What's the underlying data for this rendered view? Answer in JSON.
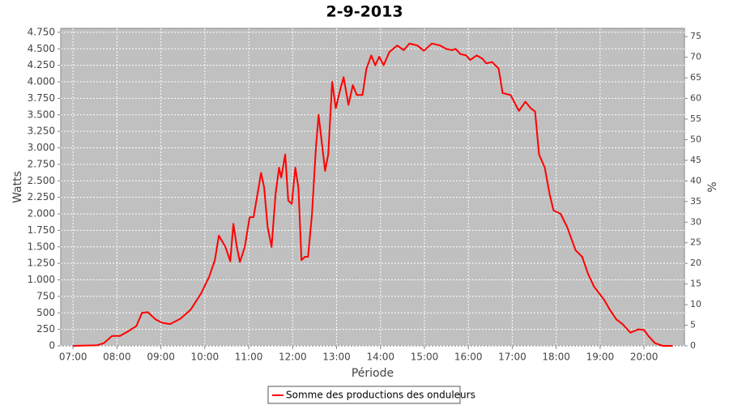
{
  "chart_data": {
    "type": "line",
    "title": "2-9-2013",
    "x_label": "Période",
    "y_label": "Watts",
    "y2_label": "%",
    "x": [
      7.0,
      7.55,
      7.7,
      7.89,
      8.07,
      8.25,
      8.44,
      8.57,
      8.7,
      8.88,
      9.03,
      9.21,
      9.44,
      9.68,
      9.92,
      10.1,
      10.23,
      10.32,
      10.47,
      10.58,
      10.65,
      10.73,
      10.8,
      10.91,
      11.02,
      11.11,
      11.2,
      11.28,
      11.35,
      11.43,
      11.52,
      11.61,
      11.69,
      11.74,
      11.83,
      11.9,
      11.98,
      12.06,
      12.13,
      12.2,
      12.28,
      12.35,
      12.44,
      12.53,
      12.59,
      12.66,
      12.74,
      12.81,
      12.9,
      12.98,
      13.09,
      13.16,
      13.27,
      13.37,
      13.46,
      13.59,
      13.68,
      13.79,
      13.88,
      13.97,
      14.07,
      14.2,
      14.38,
      14.53,
      14.66,
      14.84,
      14.99,
      15.17,
      15.36,
      15.49,
      15.63,
      15.71,
      15.82,
      15.95,
      16.04,
      16.19,
      16.32,
      16.41,
      16.54,
      16.69,
      16.78,
      16.96,
      17.15,
      17.3,
      17.42,
      17.52,
      17.61,
      17.74,
      17.85,
      17.94,
      18.1,
      18.25,
      18.44,
      18.59,
      18.72,
      18.86,
      19.09,
      19.22,
      19.37,
      19.51,
      19.69,
      19.87,
      20.0,
      20.1,
      20.25,
      20.43,
      20.65
    ],
    "series": [
      {
        "name": "Somme des productions des onduleurs",
        "color": "#ff0000",
        "values": [
          0,
          10,
          40,
          150,
          150,
          220,
          300,
          500,
          510,
          400,
          350,
          330,
          410,
          550,
          800,
          1050,
          1300,
          1670,
          1500,
          1280,
          1850,
          1500,
          1270,
          1500,
          1950,
          1950,
          2300,
          2620,
          2400,
          1800,
          1500,
          2300,
          2700,
          2550,
          2900,
          2200,
          2150,
          2700,
          2400,
          1300,
          1350,
          1350,
          2000,
          3000,
          3500,
          3100,
          2650,
          2900,
          4000,
          3600,
          3900,
          4070,
          3650,
          3950,
          3800,
          3800,
          4200,
          4400,
          4250,
          4380,
          4250,
          4450,
          4550,
          4480,
          4580,
          4550,
          4470,
          4580,
          4550,
          4500,
          4480,
          4500,
          4420,
          4400,
          4330,
          4400,
          4350,
          4280,
          4300,
          4200,
          3830,
          3800,
          3560,
          3700,
          3600,
          3550,
          2900,
          2700,
          2300,
          2050,
          2000,
          1800,
          1450,
          1350,
          1100,
          900,
          700,
          550,
          400,
          330,
          200,
          250,
          240,
          150,
          40,
          0,
          0
        ]
      }
    ],
    "xlim": [
      6.72,
      20.92
    ],
    "xticks": [
      {
        "value": 7,
        "label": "07:00"
      },
      {
        "value": 8,
        "label": "08:00"
      },
      {
        "value": 9,
        "label": "09:00"
      },
      {
        "value": 10,
        "label": "10:00"
      },
      {
        "value": 11,
        "label": "11:00"
      },
      {
        "value": 12,
        "label": "12:00"
      },
      {
        "value": 13,
        "label": "13:00"
      },
      {
        "value": 14,
        "label": "14:00"
      },
      {
        "value": 15,
        "label": "15:00"
      },
      {
        "value": 16,
        "label": "16:00"
      },
      {
        "value": 17,
        "label": "17:00"
      },
      {
        "value": 18,
        "label": "18:00"
      },
      {
        "value": 19,
        "label": "19:00"
      },
      {
        "value": 20,
        "label": "20:00"
      }
    ],
    "ylim": [
      0,
      4810
    ],
    "yticks": [
      0,
      250,
      500,
      750,
      {
        "value": 1000,
        "label": "1.000"
      },
      {
        "value": 1250,
        "label": "1.250"
      },
      {
        "value": 1500,
        "label": "1.500"
      },
      {
        "value": 1750,
        "label": "1.750"
      },
      {
        "value": 2000,
        "label": "2.000"
      },
      {
        "value": 2250,
        "label": "2.250"
      },
      {
        "value": 2500,
        "label": "2.500"
      },
      {
        "value": 2750,
        "label": "2.750"
      },
      {
        "value": 3000,
        "label": "3.000"
      },
      {
        "value": 3250,
        "label": "3.250"
      },
      {
        "value": 3500,
        "label": "3.500"
      },
      {
        "value": 3750,
        "label": "3.750"
      },
      {
        "value": 4000,
        "label": "4.000"
      },
      {
        "value": 4250,
        "label": "4.250"
      },
      {
        "value": 4500,
        "label": "4.500"
      },
      {
        "value": 4750,
        "label": "4.750"
      }
    ],
    "y2lim": [
      0,
      77
    ],
    "y2ticks": [
      0,
      5,
      10,
      15,
      20,
      25,
      30,
      35,
      40,
      45,
      50,
      55,
      60,
      65,
      70,
      75
    ],
    "grid": true,
    "legend": "bottom"
  }
}
